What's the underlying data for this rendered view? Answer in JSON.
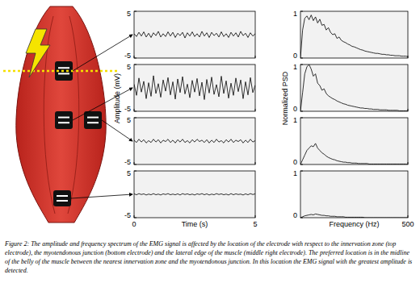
{
  "caption": "Figure 2:  The amplitude and frequency spectrum of the EMG signal is affected by the location of the electrode with respect to the innervation zone (top electrode), the myotendonous junction (bottom electrode) and the lateral edge of the muscle (middle right electrode).  The preferred location is in the midline of the belly of the muscle between the nearest innervation zone and the myotendonous junction.  In this location the EMG signal with the greatest amplitude is detected.",
  "chart_data": [
    {
      "type": "line",
      "x": [
        0,
        0.1,
        0.2,
        0.3,
        0.4,
        0.5,
        0.6,
        0.7,
        0.8,
        0.9,
        1,
        1.1,
        1.2,
        1.3,
        1.4,
        1.5,
        1.6,
        1.7,
        1.8,
        1.9,
        2,
        2.1,
        2.2,
        2.3,
        2.4,
        2.5,
        2.6,
        2.7,
        2.8,
        2.9,
        3,
        3.1,
        3.2,
        3.3,
        3.4,
        3.5,
        3.6,
        3.7,
        3.8,
        3.9,
        4,
        4.1,
        4.2,
        4.3,
        4.4,
        4.5,
        4.6,
        4.7,
        4.8,
        4.9,
        5
      ],
      "series": [
        {
          "color": "#000000",
          "values": [
            0.2,
            -0.4,
            0.5,
            -0.3,
            0.6,
            -0.5,
            0.3,
            -0.6,
            0.4,
            -0.2,
            0.7,
            -0.5,
            0.2,
            -0.4,
            0.6,
            -0.3,
            0.5,
            -0.6,
            0.3,
            -0.2,
            0.5,
            -0.7,
            0.4,
            -0.3,
            0.6,
            -0.4,
            0.2,
            -0.5,
            0.7,
            -0.3,
            0.4,
            -0.6,
            0.5,
            -0.2,
            0.3,
            -0.5,
            0.6,
            -0.4,
            0.2,
            -0.6,
            0.5,
            -0.3,
            0.4,
            -0.5,
            0.7,
            -0.2,
            0.3,
            -0.6,
            0.4,
            -0.3,
            0.2
          ]
        }
      ],
      "xlim": [
        0,
        5
      ],
      "ylim": [
        -5,
        5
      ],
      "xticks": [
        0,
        5
      ],
      "yticks": [
        -5,
        5
      ],
      "tick_labels": "y"
    },
    {
      "type": "line",
      "ylabel": "Amplitude (mV)",
      "x": [
        0,
        0.1,
        0.2,
        0.3,
        0.4,
        0.5,
        0.6,
        0.7,
        0.8,
        0.9,
        1,
        1.1,
        1.2,
        1.3,
        1.4,
        1.5,
        1.6,
        1.7,
        1.8,
        1.9,
        2,
        2.1,
        2.2,
        2.3,
        2.4,
        2.5,
        2.6,
        2.7,
        2.8,
        2.9,
        3,
        3.1,
        3.2,
        3.3,
        3.4,
        3.5,
        3.6,
        3.7,
        3.8,
        3.9,
        4,
        4.1,
        4.2,
        4.3,
        4.4,
        4.5,
        4.6,
        4.7,
        4.8,
        4.9,
        5
      ],
      "series": [
        {
          "color": "#000000",
          "values": [
            0.8,
            -1.6,
            2.1,
            -0.9,
            1.4,
            -2.3,
            1.1,
            -1.8,
            2.6,
            -1.2,
            0.9,
            -2.0,
            1.7,
            -0.7,
            2.2,
            -1.5,
            1.3,
            -2.4,
            1.9,
            -1.0,
            2.4,
            -1.3,
            0.8,
            -2.1,
            1.6,
            -0.9,
            2.0,
            -1.7,
            1.2,
            -2.5,
            1.8,
            -1.1,
            2.3,
            -1.4,
            0.7,
            -1.9,
            2.5,
            -1.2,
            1.5,
            -2.2,
            1.0,
            -1.6,
            2.1,
            -0.8,
            1.7,
            -2.3,
            1.3,
            -1.5,
            2.2,
            -1.0,
            0.6
          ]
        }
      ],
      "xlim": [
        0,
        5
      ],
      "ylim": [
        -5,
        5
      ],
      "xticks": [
        0,
        5
      ],
      "yticks": [
        -5,
        5
      ],
      "tick_labels": "y"
    },
    {
      "type": "line",
      "x": [
        0,
        0.1,
        0.2,
        0.3,
        0.4,
        0.5,
        0.6,
        0.7,
        0.8,
        0.9,
        1,
        1.1,
        1.2,
        1.3,
        1.4,
        1.5,
        1.6,
        1.7,
        1.8,
        1.9,
        2,
        2.1,
        2.2,
        2.3,
        2.4,
        2.5,
        2.6,
        2.7,
        2.8,
        2.9,
        3,
        3.1,
        3.2,
        3.3,
        3.4,
        3.5,
        3.6,
        3.7,
        3.8,
        3.9,
        4,
        4.1,
        4.2,
        4.3,
        4.4,
        4.5,
        4.6,
        4.7,
        4.8,
        4.9,
        5
      ],
      "series": [
        {
          "color": "#000000",
          "values": [
            0.2,
            -0.3,
            0.4,
            -0.2,
            0.3,
            -0.4,
            0.1,
            -0.3,
            0.4,
            -0.2,
            0.3,
            -0.4,
            0.2,
            -0.1,
            0.4,
            -0.3,
            0.2,
            -0.4,
            0.3,
            -0.2,
            0.4,
            -0.3,
            0.1,
            -0.4,
            0.3,
            -0.2,
            0.4,
            -0.1,
            0.2,
            -0.3,
            0.3,
            -0.4,
            0.2,
            -0.3,
            0.4,
            -0.2,
            0.1,
            -0.4,
            0.3,
            -0.2,
            0.4,
            -0.3,
            0.2,
            -0.1,
            0.3,
            -0.4,
            0.2,
            -0.3,
            0.4,
            -0.2,
            0.1
          ]
        }
      ],
      "xlim": [
        0,
        5
      ],
      "ylim": [
        -5,
        5
      ],
      "xticks": [
        0,
        5
      ],
      "yticks": [
        -5,
        5
      ],
      "tick_labels": "y"
    },
    {
      "type": "line",
      "xlabel": "Time (s)",
      "x": [
        0,
        0.1,
        0.2,
        0.3,
        0.4,
        0.5,
        0.6,
        0.7,
        0.8,
        0.9,
        1,
        1.1,
        1.2,
        1.3,
        1.4,
        1.5,
        1.6,
        1.7,
        1.8,
        1.9,
        2,
        2.1,
        2.2,
        2.3,
        2.4,
        2.5,
        2.6,
        2.7,
        2.8,
        2.9,
        3,
        3.1,
        3.2,
        3.3,
        3.4,
        3.5,
        3.6,
        3.7,
        3.8,
        3.9,
        4,
        4.1,
        4.2,
        4.3,
        4.4,
        4.5,
        4.6,
        4.7,
        4.8,
        4.9,
        5
      ],
      "series": [
        {
          "color": "#000000",
          "values": [
            0.1,
            -0.1,
            0.15,
            -0.05,
            0.1,
            -0.15,
            0.05,
            -0.1,
            0.15,
            -0.1,
            0.05,
            -0.15,
            0.1,
            -0.05,
            0.15,
            -0.1,
            0.05,
            -0.1,
            0.1,
            -0.15,
            0.15,
            -0.05,
            0.1,
            -0.1,
            0.05,
            -0.15,
            0.1,
            -0.05,
            0.15,
            -0.1,
            0.1,
            -0.15,
            0.05,
            -0.1,
            0.15,
            -0.05,
            0.1,
            -0.1,
            0.05,
            -0.15,
            0.15,
            -0.1,
            0.1,
            -0.05,
            0.05,
            -0.15,
            0.1,
            -0.1,
            0.15,
            -0.05,
            0.1
          ]
        }
      ],
      "xlim": [
        0,
        5
      ],
      "ylim": [
        -5,
        5
      ],
      "xticks": [
        0,
        5
      ],
      "yticks": [
        -5,
        5
      ],
      "tick_labels": true
    },
    {
      "type": "line",
      "x": [
        0,
        10,
        20,
        30,
        40,
        50,
        60,
        70,
        80,
        90,
        100,
        110,
        120,
        130,
        140,
        150,
        160,
        170,
        180,
        190,
        200,
        210,
        220,
        230,
        240,
        250,
        260,
        270,
        280,
        290,
        300,
        310,
        320,
        330,
        340,
        350,
        360,
        370,
        380,
        390,
        400,
        410,
        420,
        430,
        440,
        450,
        460,
        470,
        480,
        490,
        500
      ],
      "series": [
        {
          "color": "#000000",
          "values": [
            0,
            0.6,
            0.85,
            0.9,
            0.82,
            0.92,
            0.8,
            0.88,
            0.75,
            0.83,
            0.7,
            0.72,
            0.6,
            0.65,
            0.55,
            0.5,
            0.52,
            0.42,
            0.45,
            0.38,
            0.35,
            0.33,
            0.3,
            0.28,
            0.25,
            0.24,
            0.22,
            0.2,
            0.18,
            0.17,
            0.15,
            0.14,
            0.13,
            0.12,
            0.11,
            0.1,
            0.1,
            0.09,
            0.08,
            0.08,
            0.07,
            0.07,
            0.06,
            0.06,
            0.05,
            0.05,
            0.05,
            0.04,
            0.04,
            0.04,
            0.03
          ]
        }
      ],
      "xlim": [
        0,
        500
      ],
      "ylim": [
        0,
        1
      ],
      "xticks": [
        500
      ],
      "yticks": [
        0,
        1
      ],
      "tick_labels": "y"
    },
    {
      "type": "line",
      "ylabel": "Normalized PSD",
      "x": [
        0,
        10,
        20,
        30,
        40,
        50,
        60,
        70,
        80,
        90,
        100,
        110,
        120,
        130,
        140,
        150,
        160,
        170,
        180,
        190,
        200,
        210,
        220,
        230,
        240,
        250,
        260,
        270,
        280,
        290,
        300,
        310,
        320,
        330,
        340,
        350,
        360,
        370,
        380,
        390,
        400,
        410,
        420,
        430,
        440,
        450,
        460,
        470,
        480,
        490,
        500
      ],
      "series": [
        {
          "color": "#000000",
          "values": [
            0,
            0.4,
            0.8,
            0.95,
            1.0,
            0.9,
            0.75,
            0.8,
            0.6,
            0.55,
            0.45,
            0.48,
            0.38,
            0.33,
            0.3,
            0.27,
            0.25,
            0.22,
            0.2,
            0.18,
            0.16,
            0.15,
            0.13,
            0.12,
            0.11,
            0.1,
            0.09,
            0.08,
            0.07,
            0.07,
            0.06,
            0.06,
            0.05,
            0.05,
            0.04,
            0.04,
            0.04,
            0.03,
            0.03,
            0.03,
            0.03,
            0.02,
            0.02,
            0.02,
            0.02,
            0.02,
            0.01,
            0.01,
            0.01,
            0.01,
            0.01
          ]
        }
      ],
      "xlim": [
        0,
        500
      ],
      "ylim": [
        0,
        1
      ],
      "xticks": [
        500
      ],
      "yticks": [
        0,
        1
      ],
      "tick_labels": "y"
    },
    {
      "type": "line",
      "x": [
        0,
        10,
        20,
        30,
        40,
        50,
        60,
        70,
        80,
        90,
        100,
        110,
        120,
        130,
        140,
        150,
        160,
        170,
        180,
        190,
        200,
        210,
        220,
        230,
        240,
        250,
        260,
        270,
        280,
        290,
        300,
        310,
        320,
        330,
        340,
        350,
        360,
        370,
        380,
        390,
        400,
        410,
        420,
        430,
        440,
        450,
        460,
        470,
        480,
        490,
        500
      ],
      "series": [
        {
          "color": "#000000",
          "values": [
            0,
            0.1,
            0.2,
            0.3,
            0.35,
            0.4,
            0.38,
            0.45,
            0.35,
            0.3,
            0.25,
            0.22,
            0.18,
            0.15,
            0.13,
            0.11,
            0.1,
            0.08,
            0.07,
            0.06,
            0.05,
            0.05,
            0.04,
            0.04,
            0.03,
            0.03,
            0.03,
            0.02,
            0.02,
            0.02,
            0.02,
            0.02,
            0.01,
            0.01,
            0.01,
            0.01,
            0.01,
            0.01,
            0.01,
            0.01,
            0.01,
            0.01,
            0.01,
            0.01,
            0.01,
            0.01,
            0.01,
            0.01,
            0.01,
            0.01,
            0
          ]
        }
      ],
      "xlim": [
        0,
        500
      ],
      "ylim": [
        0,
        1
      ],
      "xticks": [
        500
      ],
      "yticks": [
        0,
        1
      ],
      "tick_labels": "y"
    },
    {
      "type": "line",
      "xlabel": "Frequency (Hz)",
      "x": [
        0,
        10,
        20,
        30,
        40,
        50,
        60,
        70,
        80,
        90,
        100,
        110,
        120,
        130,
        140,
        150,
        160,
        170,
        180,
        190,
        200,
        210,
        220,
        230,
        240,
        250,
        260,
        270,
        280,
        290,
        300,
        310,
        320,
        330,
        340,
        350,
        360,
        370,
        380,
        390,
        400,
        410,
        420,
        430,
        440,
        450,
        460,
        470,
        480,
        490,
        500
      ],
      "series": [
        {
          "color": "#000000",
          "values": [
            0,
            0.02,
            0.04,
            0.05,
            0.06,
            0.07,
            0.06,
            0.08,
            0.07,
            0.06,
            0.05,
            0.05,
            0.04,
            0.04,
            0.03,
            0.03,
            0.03,
            0.02,
            0.02,
            0.02,
            0.02,
            0.01,
            0.01,
            0.01,
            0.01,
            0.01,
            0.01,
            0.01,
            0.01,
            0.01,
            0,
            0,
            0,
            0,
            0,
            0,
            0,
            0,
            0,
            0,
            0,
            0,
            0,
            0,
            0,
            0,
            0,
            0,
            0,
            0,
            0
          ]
        }
      ],
      "xlim": [
        0,
        500
      ],
      "ylim": [
        0,
        1
      ],
      "xticks": [
        500
      ],
      "yticks": [
        0,
        1
      ],
      "tick_labels": true
    }
  ]
}
